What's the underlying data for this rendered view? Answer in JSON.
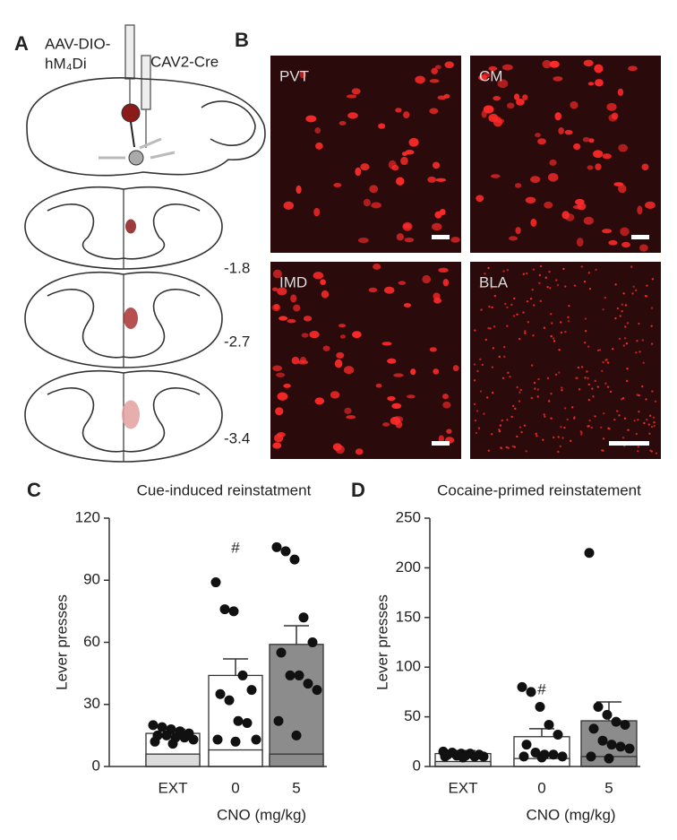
{
  "panel_a": {
    "letter": "A",
    "virus_1": [
      "AAV-DIO-",
      "hM₄Di"
    ],
    "virus_2": "CAV2-Cre",
    "levels": [
      "-1.8",
      "-2.7",
      "-3.4"
    ]
  },
  "panel_b": {
    "letter": "B",
    "images": [
      "PVT",
      "CM",
      "IMD",
      "BLA"
    ]
  },
  "chart_data": [
    {
      "type": "bar",
      "panel": "C",
      "title": "Cue-induced reinstatment",
      "ylabel": "Lever presses",
      "xlabel": "CNO (mg/kg)",
      "categories": [
        "EXT",
        "0",
        "5"
      ],
      "ylim": [
        0,
        120
      ],
      "yticks": [
        0,
        30,
        60,
        90,
        120
      ],
      "annotation": "#",
      "annotation_category": 1,
      "series": [
        {
          "colors": [
            "#ffffff",
            "#ffffff",
            "#8c8c8c"
          ],
          "values": [
            16,
            44,
            59
          ],
          "errors": [
            2,
            8,
            9
          ]
        },
        {
          "colors": [
            "#dcdcdc",
            "#ffffff",
            "#8c8c8c"
          ],
          "values": [
            6,
            8,
            6
          ]
        }
      ],
      "points": [
        [
          20,
          19,
          18,
          17,
          16,
          15,
          15,
          14,
          14,
          13,
          12,
          11
        ],
        [
          89,
          76,
          75,
          44,
          37,
          35,
          32,
          22,
          21,
          13,
          13,
          12
        ],
        [
          106,
          104,
          100,
          72,
          60,
          55,
          44,
          44,
          40,
          37,
          22,
          15
        ]
      ]
    },
    {
      "type": "bar",
      "panel": "D",
      "title": "Cocaine-primed reinstatement",
      "ylabel": "Lever presses",
      "xlabel": "CNO (mg/kg)",
      "categories": [
        "EXT",
        "0",
        "5"
      ],
      "ylim": [
        0,
        250
      ],
      "yticks": [
        0,
        50,
        100,
        150,
        200,
        250
      ],
      "annotation": "#",
      "annotation_category": 1,
      "series": [
        {
          "colors": [
            "#ffffff",
            "#ffffff",
            "#8c8c8c"
          ],
          "values": [
            13,
            30,
            46
          ],
          "errors": [
            3,
            8,
            19
          ]
        },
        {
          "colors": [
            "#dcdcdc",
            "#ffffff",
            "#8c8c8c"
          ],
          "values": [
            5,
            8,
            10
          ]
        }
      ],
      "points": [
        [
          15,
          14,
          13,
          13,
          12,
          12,
          11,
          11,
          10,
          10,
          10,
          9
        ],
        [
          80,
          75,
          60,
          42,
          32,
          22,
          14,
          12,
          12,
          10,
          10,
          9
        ],
        [
          215,
          60,
          52,
          45,
          42,
          38,
          26,
          22,
          20,
          18,
          10,
          8
        ]
      ]
    }
  ]
}
